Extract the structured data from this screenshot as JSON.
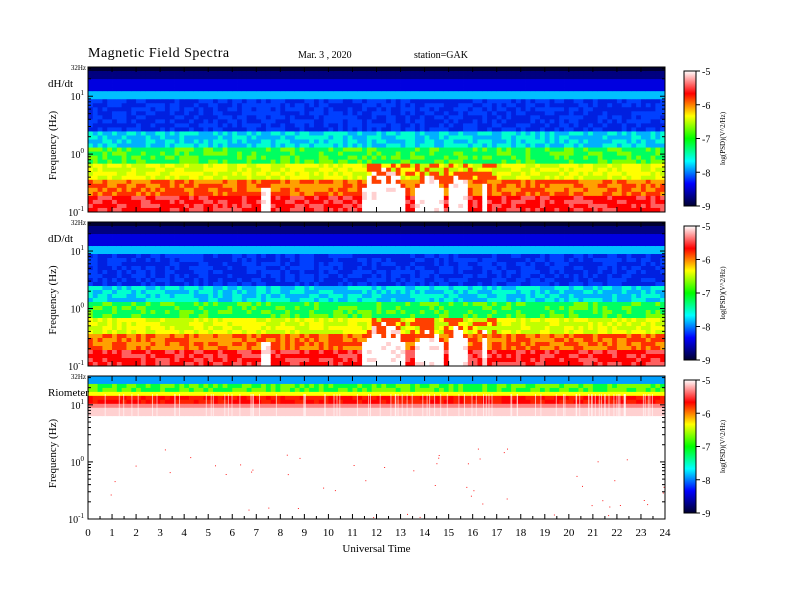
{
  "header": {
    "title": "Magnetic  Field  Spectra",
    "date": "Mar. 3  , 2020",
    "station": "station=GAK"
  },
  "chart_data": {
    "type": "heatmap",
    "x_axis": {
      "label": "Universal Time",
      "range": [
        0,
        24
      ],
      "ticks": [
        "0",
        "1",
        "2",
        "3",
        "4",
        "5",
        "6",
        "7",
        "8",
        "9",
        "10",
        "11",
        "12",
        "13",
        "14",
        "15",
        "16",
        "17",
        "18",
        "19",
        "20",
        "21",
        "22",
        "23",
        "24"
      ]
    },
    "y_axis": {
      "label": "Frequency (Hz)",
      "scale": "log",
      "range": [
        0.1,
        32
      ],
      "top_label": "32Hz",
      "tick_values": [
        0.1,
        1,
        10
      ],
      "tick_labels": [
        {
          "base": "10",
          "exp": "-1"
        },
        {
          "base": "10",
          "exp": "0"
        },
        {
          "base": "10",
          "exp": "1"
        }
      ]
    },
    "colorbar": {
      "label": "log(PSD)(V^2/Hz)",
      "range": [
        -9,
        -5
      ],
      "ticks": [
        "-5",
        "-6",
        "-7",
        "-8",
        "-9"
      ],
      "colors": [
        "#ffffff",
        "#ff0000",
        "#ffff00",
        "#00ff00",
        "#00ffff",
        "#0000ff",
        "#000030"
      ]
    },
    "panels": [
      {
        "name": "dH/dt",
        "kind": "magnetic"
      },
      {
        "name": "dD/dt",
        "kind": "magnetic"
      },
      {
        "name": "Riometer",
        "kind": "riometer"
      }
    ]
  }
}
